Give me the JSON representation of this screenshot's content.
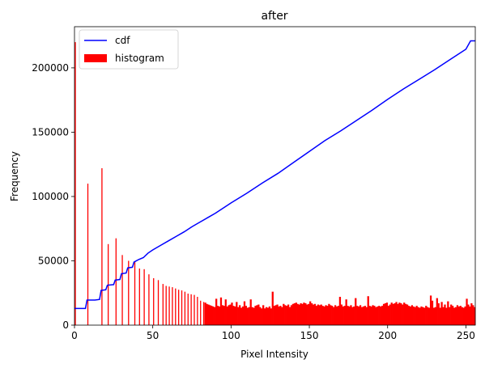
{
  "chart_data": {
    "type": "bar",
    "title": "after",
    "xlabel": "Pixel Intensity",
    "ylabel": "Frequency",
    "xlim": [
      0,
      256
    ],
    "ylim": [
      0,
      232000
    ],
    "xticks": [
      0,
      50,
      100,
      150,
      200,
      250
    ],
    "yticks": [
      0,
      50000,
      100000,
      150000,
      200000
    ],
    "legend": {
      "placement": "top-left",
      "entries": [
        {
          "label": "cdf",
          "kind": "line",
          "color": "#0000ff"
        },
        {
          "label": "histogram",
          "kind": "bar",
          "color": "#ff0000"
        }
      ]
    },
    "histogram": {
      "name": "histogram",
      "color": "#ff0000",
      "spikes": [
        {
          "x": 0,
          "y": 220000
        },
        {
          "x": 8,
          "y": 110000
        },
        {
          "x": 17,
          "y": 122000
        },
        {
          "x": 21,
          "y": 63000
        },
        {
          "x": 26,
          "y": 67500
        },
        {
          "x": 30,
          "y": 54500
        },
        {
          "x": 34,
          "y": 50000
        },
        {
          "x": 38,
          "y": 49000
        },
        {
          "x": 41,
          "y": 44000
        },
        {
          "x": 44,
          "y": 43500
        },
        {
          "x": 47,
          "y": 39500
        },
        {
          "x": 50,
          "y": 36500
        },
        {
          "x": 53,
          "y": 35000
        },
        {
          "x": 56,
          "y": 32000
        },
        {
          "x": 58,
          "y": 30500
        },
        {
          "x": 60,
          "y": 30000
        },
        {
          "x": 62,
          "y": 29500
        },
        {
          "x": 64,
          "y": 28500
        },
        {
          "x": 66,
          "y": 27500
        },
        {
          "x": 68,
          "y": 27000
        },
        {
          "x": 70,
          "y": 26000
        },
        {
          "x": 72,
          "y": 24500
        },
        {
          "x": 74,
          "y": 24000
        },
        {
          "x": 76,
          "y": 23500
        },
        {
          "x": 78,
          "y": 22000
        },
        {
          "x": 80,
          "y": 19000
        },
        {
          "x": 82,
          "y": 18000
        }
      ],
      "band": [
        [
          83,
          17500
        ],
        [
          84,
          16500
        ],
        [
          85,
          16000
        ],
        [
          86,
          15500
        ],
        [
          87,
          15000
        ],
        [
          88,
          14500
        ],
        [
          89,
          14000
        ],
        [
          90,
          20500
        ],
        [
          91,
          15000
        ],
        [
          92,
          14500
        ],
        [
          93,
          21500
        ],
        [
          94,
          15500
        ],
        [
          95,
          15000
        ],
        [
          96,
          20000
        ],
        [
          97,
          14500
        ],
        [
          98,
          15500
        ],
        [
          99,
          16000
        ],
        [
          100,
          17500
        ],
        [
          101,
          15000
        ],
        [
          102,
          14500
        ],
        [
          103,
          18000
        ],
        [
          104,
          14000
        ],
        [
          105,
          15500
        ],
        [
          106,
          13500
        ],
        [
          107,
          14500
        ],
        [
          108,
          18500
        ],
        [
          109,
          15000
        ],
        [
          110,
          13500
        ],
        [
          111,
          14000
        ],
        [
          112,
          20000
        ],
        [
          113,
          14000
        ],
        [
          114,
          13500
        ],
        [
          115,
          15000
        ],
        [
          116,
          15500
        ],
        [
          117,
          16000
        ],
        [
          118,
          14000
        ],
        [
          119,
          13000
        ],
        [
          120,
          15500
        ],
        [
          121,
          13000
        ],
        [
          122,
          14000
        ],
        [
          123,
          13500
        ],
        [
          124,
          14500
        ],
        [
          125,
          13000
        ],
        [
          126,
          26000
        ],
        [
          127,
          15000
        ],
        [
          128,
          15500
        ],
        [
          129,
          16000
        ],
        [
          130,
          14500
        ],
        [
          131,
          15000
        ],
        [
          132,
          14000
        ],
        [
          133,
          16500
        ],
        [
          134,
          15500
        ],
        [
          135,
          15000
        ],
        [
          136,
          16000
        ],
        [
          137,
          14000
        ],
        [
          138,
          15500
        ],
        [
          139,
          16500
        ],
        [
          140,
          17000
        ],
        [
          141,
          17500
        ],
        [
          142,
          16500
        ],
        [
          143,
          16000
        ],
        [
          144,
          17000
        ],
        [
          145,
          16500
        ],
        [
          146,
          17500
        ],
        [
          147,
          17000
        ],
        [
          148,
          16000
        ],
        [
          149,
          16500
        ],
        [
          150,
          18500
        ],
        [
          151,
          17000
        ],
        [
          152,
          16000
        ],
        [
          153,
          16500
        ],
        [
          154,
          15000
        ],
        [
          155,
          16000
        ],
        [
          156,
          15500
        ],
        [
          157,
          16000
        ],
        [
          158,
          15000
        ],
        [
          159,
          14500
        ],
        [
          160,
          15500
        ],
        [
          161,
          15000
        ],
        [
          162,
          16500
        ],
        [
          163,
          15500
        ],
        [
          164,
          15000
        ],
        [
          165,
          14000
        ],
        [
          166,
          15500
        ],
        [
          167,
          14500
        ],
        [
          168,
          15000
        ],
        [
          169,
          22000
        ],
        [
          170,
          16000
        ],
        [
          171,
          14500
        ],
        [
          172,
          15000
        ],
        [
          173,
          20000
        ],
        [
          174,
          15000
        ],
        [
          175,
          14500
        ],
        [
          176,
          15500
        ],
        [
          177,
          14000
        ],
        [
          178,
          14500
        ],
        [
          179,
          21000
        ],
        [
          180,
          15000
        ],
        [
          181,
          14500
        ],
        [
          182,
          15500
        ],
        [
          183,
          14000
        ],
        [
          184,
          14500
        ],
        [
          185,
          15000
        ],
        [
          186,
          14000
        ],
        [
          187,
          22500
        ],
        [
          188,
          15000
        ],
        [
          189,
          14500
        ],
        [
          190,
          15500
        ],
        [
          191,
          15000
        ],
        [
          192,
          14000
        ],
        [
          193,
          14500
        ],
        [
          194,
          15000
        ],
        [
          195,
          14500
        ],
        [
          196,
          15000
        ],
        [
          197,
          16500
        ],
        [
          198,
          17000
        ],
        [
          199,
          17500
        ],
        [
          200,
          15000
        ],
        [
          201,
          16000
        ],
        [
          202,
          17500
        ],
        [
          203,
          16500
        ],
        [
          204,
          17000
        ],
        [
          205,
          18000
        ],
        [
          206,
          16500
        ],
        [
          207,
          17500
        ],
        [
          208,
          17000
        ],
        [
          209,
          16000
        ],
        [
          210,
          17500
        ],
        [
          211,
          16500
        ],
        [
          212,
          16000
        ],
        [
          213,
          15000
        ],
        [
          214,
          14500
        ],
        [
          215,
          15500
        ],
        [
          216,
          14500
        ],
        [
          217,
          14000
        ],
        [
          218,
          15000
        ],
        [
          219,
          14000
        ],
        [
          220,
          13500
        ],
        [
          221,
          14500
        ],
        [
          222,
          14000
        ],
        [
          223,
          13500
        ],
        [
          224,
          15000
        ],
        [
          225,
          14000
        ],
        [
          226,
          13500
        ],
        [
          227,
          23000
        ],
        [
          228,
          19000
        ],
        [
          229,
          13500
        ],
        [
          230,
          14000
        ],
        [
          231,
          21000
        ],
        [
          232,
          17000
        ],
        [
          233,
          13500
        ],
        [
          234,
          18000
        ],
        [
          235,
          14000
        ],
        [
          236,
          16000
        ],
        [
          237,
          13500
        ],
        [
          238,
          18500
        ],
        [
          239,
          14000
        ],
        [
          240,
          16000
        ],
        [
          241,
          15000
        ],
        [
          242,
          13500
        ],
        [
          243,
          14000
        ],
        [
          244,
          15500
        ],
        [
          245,
          14500
        ],
        [
          246,
          15000
        ],
        [
          247,
          14000
        ],
        [
          248,
          13500
        ],
        [
          249,
          14500
        ],
        [
          250,
          20500
        ],
        [
          251,
          16000
        ],
        [
          252,
          14500
        ],
        [
          253,
          17000
        ],
        [
          254,
          15500
        ],
        [
          255,
          14000
        ]
      ]
    },
    "series": [
      {
        "name": "cdf",
        "type": "line",
        "color": "#0000ff",
        "x": [
          0,
          7,
          8,
          13,
          16,
          17,
          20,
          21,
          25,
          26,
          29,
          30,
          33,
          34,
          37,
          38,
          41,
          44,
          47,
          50,
          55,
          60,
          65,
          70,
          75,
          80,
          85,
          90,
          100,
          110,
          120,
          130,
          140,
          150,
          160,
          170,
          180,
          190,
          200,
          210,
          220,
          230,
          240,
          250,
          253,
          256
        ],
        "y": [
          13000,
          13000,
          19500,
          19500,
          20000,
          27000,
          27500,
          31000,
          31500,
          35000,
          35500,
          40000,
          40500,
          44500,
          45000,
          49000,
          51000,
          52500,
          56000,
          58500,
          62000,
          65500,
          69000,
          72500,
          76500,
          80000,
          83500,
          87000,
          95000,
          102500,
          110500,
          118000,
          126500,
          135000,
          143500,
          151000,
          159000,
          167000,
          175500,
          183500,
          191000,
          198500,
          206500,
          214500,
          221000,
          221000
        ]
      }
    ]
  }
}
